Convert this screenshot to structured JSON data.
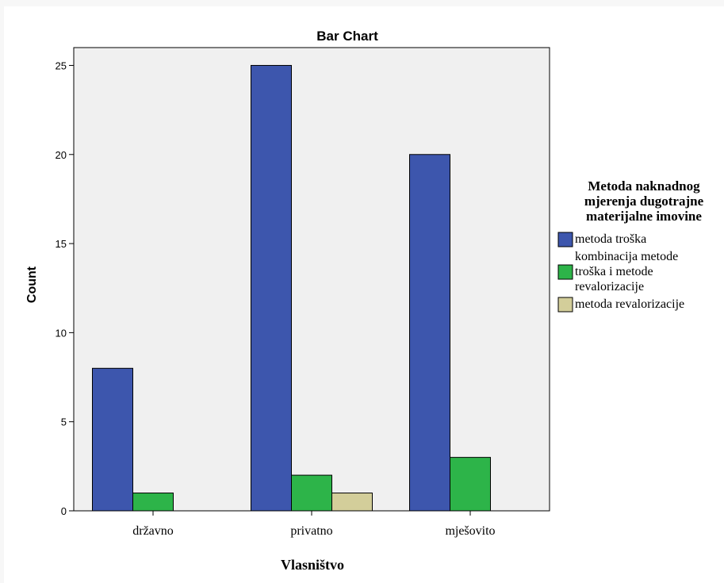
{
  "chart_data": {
    "type": "bar",
    "title": "Bar Chart",
    "xlabel": "Vlasništvo",
    "ylabel": "Count",
    "categories": [
      "državno",
      "privatno",
      "mješovito"
    ],
    "ylim": [
      0,
      26
    ],
    "yticks": [
      0,
      5,
      10,
      15,
      20,
      25
    ],
    "grid": false,
    "legend": {
      "title": [
        "Metoda naknadnog",
        "mjerenja dugotrajne",
        "materijalne imovine"
      ],
      "position": "right"
    },
    "series": [
      {
        "name": "metoda troška",
        "label_lines": [
          "metoda troška"
        ],
        "color": "#3d56ad",
        "values": [
          8,
          25,
          20
        ]
      },
      {
        "name": "kombinacija metode troška i metode revalorizacije",
        "label_lines": [
          "kombinacija metode",
          "troška i metode",
          "revalorizacije"
        ],
        "color": "#2db449",
        "values": [
          1,
          2,
          3
        ]
      },
      {
        "name": "metoda revalorizacije",
        "label_lines": [
          "metoda revalorizacije"
        ],
        "color": "#d3ce9a",
        "values": [
          0,
          1,
          0
        ]
      }
    ]
  }
}
